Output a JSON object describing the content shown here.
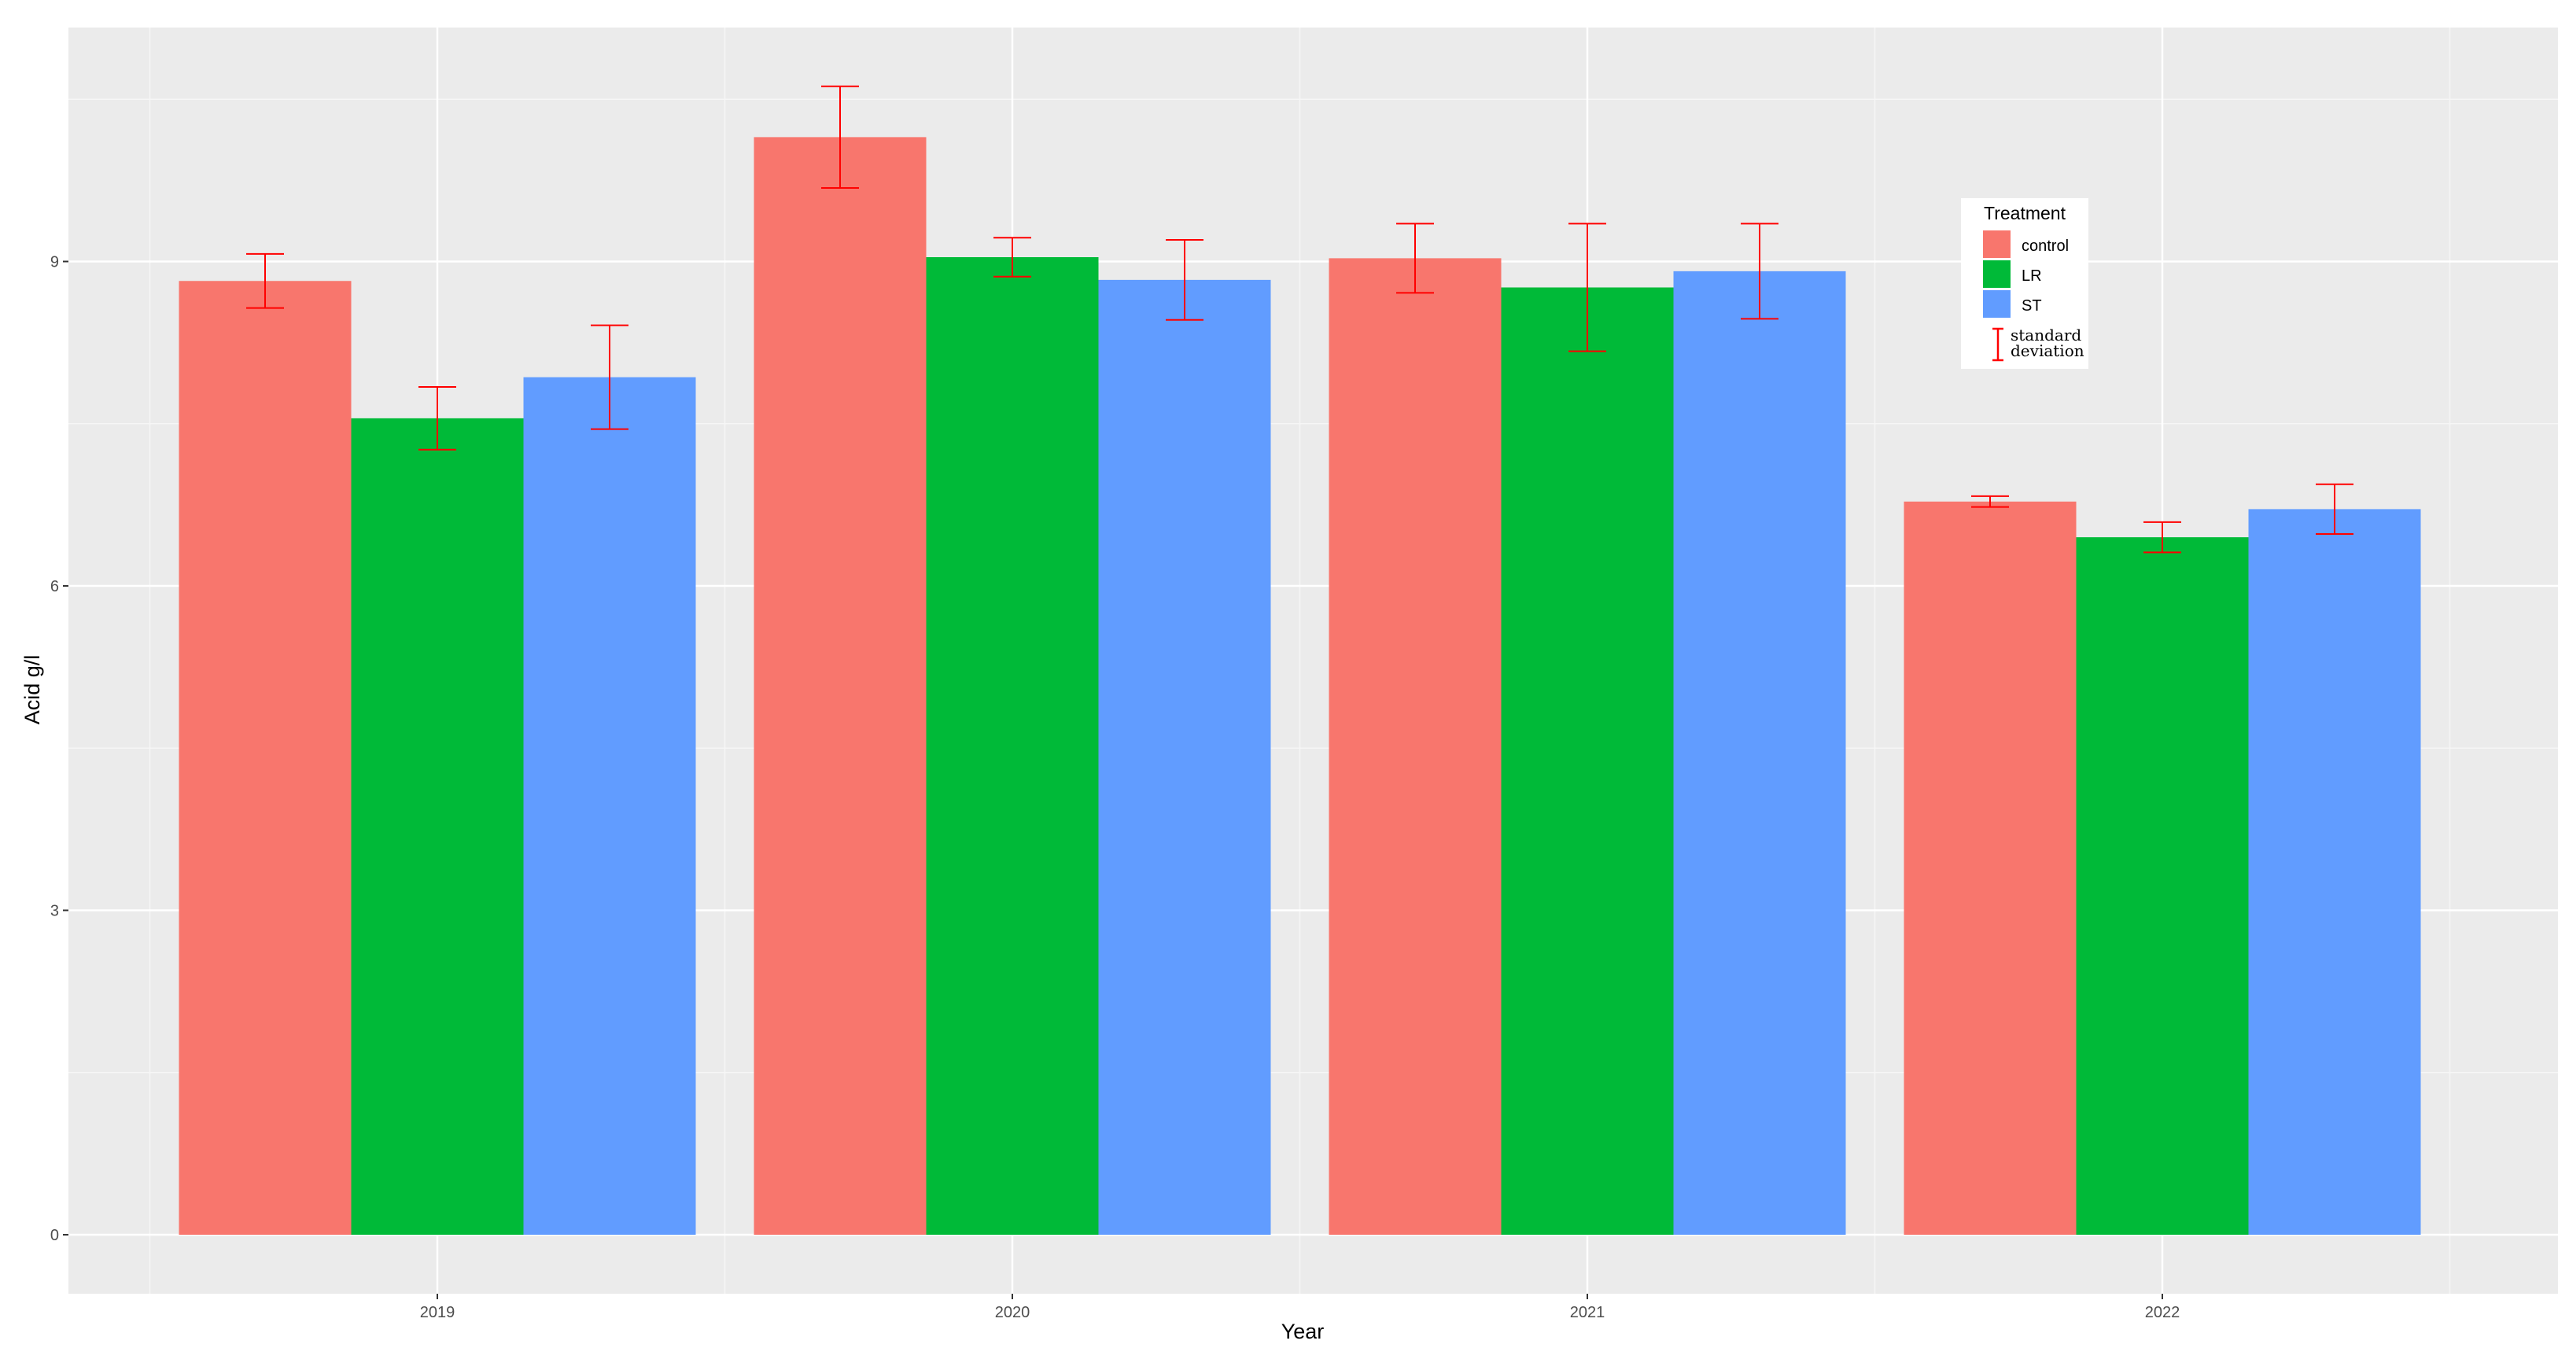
{
  "chart_data": {
    "type": "bar",
    "xlabel": "Year",
    "ylabel": "Acid g/l",
    "categories": [
      "2019",
      "2020",
      "2021",
      "2022"
    ],
    "ylim": [
      -0.05,
      11.1
    ],
    "yticks": [
      0,
      3,
      6,
      9
    ],
    "grid": true,
    "legend_placement": "top-right",
    "legend_title": "Treatment",
    "series": [
      {
        "name": "control",
        "color": "#F8766D",
        "values": [
          8.82,
          10.15,
          9.03,
          6.78
        ],
        "sd": [
          0.25,
          0.47,
          0.32,
          0.05
        ]
      },
      {
        "name": "LR",
        "color": "#00BA38",
        "values": [
          7.55,
          9.04,
          8.76,
          6.45
        ],
        "sd": [
          0.29,
          0.18,
          0.59,
          0.14
        ]
      },
      {
        "name": "ST",
        "color": "#619CFF",
        "values": [
          7.93,
          8.83,
          8.91,
          6.71
        ],
        "sd": [
          0.48,
          0.37,
          0.44,
          0.23
        ]
      }
    ],
    "error_bar_color": "#FF0000",
    "error_bar_legend": [
      "standard",
      "deviation"
    ]
  }
}
